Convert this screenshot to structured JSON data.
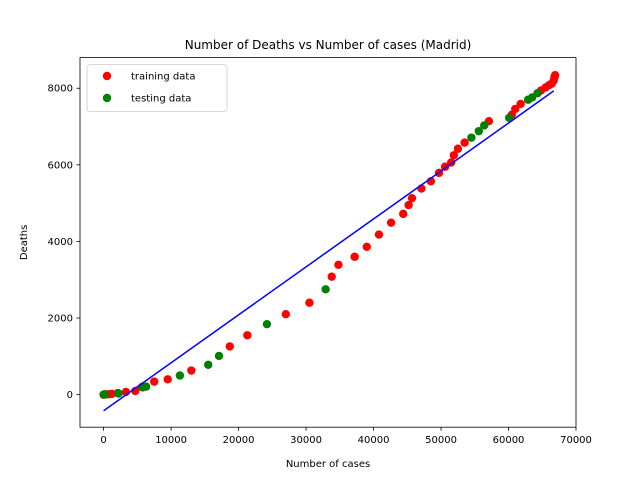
{
  "chart_data": {
    "type": "scatter",
    "title": "Number of Deaths vs Number of cases (Madrid)",
    "xlabel": "Number of cases",
    "ylabel": "Deaths",
    "xlim": [
      -3500,
      70000
    ],
    "ylim": [
      -850,
      8800
    ],
    "xticks": [
      0,
      10000,
      20000,
      30000,
      40000,
      50000,
      60000,
      70000
    ],
    "yticks": [
      0,
      2000,
      4000,
      6000,
      8000
    ],
    "xtick_labels": [
      "0",
      "10000",
      "20000",
      "30000",
      "40000",
      "50000",
      "60000",
      "70000"
    ],
    "ytick_labels": [
      "0",
      "2000",
      "4000",
      "6000",
      "8000"
    ],
    "legend": {
      "placement": "top-left"
    },
    "colors": {
      "training": "#ff0000",
      "testing": "#008000",
      "fit": "#0000ff"
    },
    "series": [
      {
        "name": "training data",
        "points": [
          [
            0,
            0
          ],
          [
            100,
            2
          ],
          [
            300,
            5
          ],
          [
            700,
            10
          ],
          [
            1200,
            20
          ],
          [
            2100,
            40
          ],
          [
            3300,
            70
          ],
          [
            4700,
            95
          ],
          [
            5700,
            200
          ],
          [
            7500,
            340
          ],
          [
            9500,
            400
          ],
          [
            13000,
            630
          ],
          [
            18700,
            1260
          ],
          [
            21300,
            1550
          ],
          [
            27000,
            2100
          ],
          [
            30500,
            2400
          ],
          [
            33800,
            3080
          ],
          [
            34800,
            3390
          ],
          [
            37200,
            3600
          ],
          [
            39000,
            3860
          ],
          [
            40800,
            4180
          ],
          [
            42600,
            4490
          ],
          [
            44400,
            4720
          ],
          [
            45200,
            4950
          ],
          [
            45700,
            5130
          ],
          [
            47100,
            5380
          ],
          [
            48500,
            5570
          ],
          [
            49700,
            5790
          ],
          [
            50600,
            5950
          ],
          [
            51500,
            6060
          ],
          [
            51900,
            6250
          ],
          [
            52500,
            6420
          ],
          [
            53500,
            6580
          ],
          [
            57100,
            7140
          ],
          [
            60500,
            7310
          ],
          [
            61000,
            7460
          ],
          [
            61800,
            7590
          ],
          [
            64800,
            7940
          ],
          [
            65500,
            8020
          ],
          [
            66000,
            8080
          ],
          [
            66400,
            8120
          ],
          [
            66700,
            8200
          ],
          [
            66800,
            8280
          ],
          [
            66900,
            8340
          ]
        ]
      },
      {
        "name": "testing data",
        "points": [
          [
            0,
            0
          ],
          [
            200,
            10
          ],
          [
            2200,
            30
          ],
          [
            5800,
            190
          ],
          [
            6300,
            210
          ],
          [
            11300,
            500
          ],
          [
            15500,
            780
          ],
          [
            17100,
            1010
          ],
          [
            24200,
            1840
          ],
          [
            32900,
            2750
          ],
          [
            54500,
            6710
          ],
          [
            55600,
            6880
          ],
          [
            56400,
            7030
          ],
          [
            60100,
            7230
          ],
          [
            62900,
            7700
          ],
          [
            63500,
            7760
          ],
          [
            64300,
            7870
          ]
        ]
      }
    ],
    "fit_line": {
      "x": [
        0,
        66700
      ],
      "y": [
        -420,
        7930
      ]
    }
  }
}
